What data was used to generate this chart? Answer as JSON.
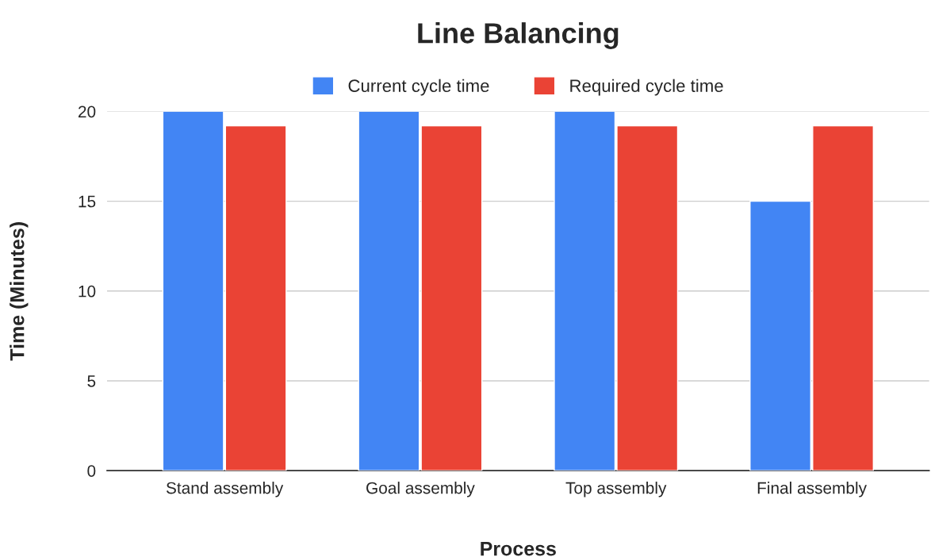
{
  "chart_data": {
    "type": "bar",
    "title": "Line Balancing",
    "xlabel": "Process",
    "ylabel": "Time (Minutes)",
    "categories": [
      "Stand assembly",
      "Goal assembly",
      "Top assembly",
      "Final assembly"
    ],
    "series": [
      {
        "name": "Current cycle time",
        "color": "#4285f4",
        "values": [
          20,
          20,
          20,
          15
        ]
      },
      {
        "name": "Required cycle time",
        "color": "#ea4335",
        "values": [
          19.2,
          19.2,
          19.2,
          19.2
        ]
      }
    ],
    "ylim": [
      0,
      20
    ],
    "yticks": [
      0,
      5,
      10,
      15,
      20
    ],
    "grid": "y",
    "legend": "top"
  }
}
